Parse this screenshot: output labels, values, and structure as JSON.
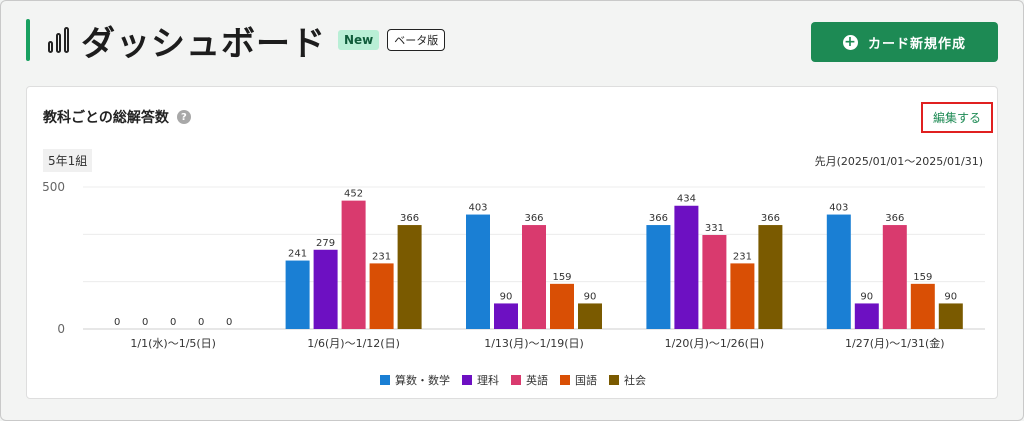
{
  "header": {
    "title": "ダッシュボード",
    "badge_new": "New",
    "badge_beta": "ベータ版",
    "create_button": "カード新規作成"
  },
  "card": {
    "title": "教科ごとの総解答数",
    "help": "?",
    "edit_link": "編集する",
    "class_tag": "5年1組",
    "period": "先月(2025/01/01〜2025/01/31)"
  },
  "colors": {
    "accent": "#1d8a54",
    "math": "#1a7fd4",
    "science": "#6d10c2",
    "english": "#d93a6e",
    "japanese": "#d94f05",
    "social": "#7a5a00"
  },
  "chart_data": {
    "type": "bar",
    "ylim": [
      0,
      500
    ],
    "yticks": [
      0,
      500
    ],
    "categories": [
      "1/1(水)〜1/5(日)",
      "1/6(月)〜1/12(日)",
      "1/13(月)〜1/19(日)",
      "1/20(月)〜1/26(日)",
      "1/27(月)〜1/31(金)"
    ],
    "series": [
      {
        "name": "算数・数学",
        "color": "#1a7fd4",
        "values": [
          0,
          241,
          403,
          366,
          403
        ]
      },
      {
        "name": "理科",
        "color": "#6d10c2",
        "values": [
          0,
          279,
          90,
          434,
          90
        ]
      },
      {
        "name": "英語",
        "color": "#d93a6e",
        "values": [
          0,
          452,
          366,
          331,
          366
        ]
      },
      {
        "name": "国語",
        "color": "#d94f05",
        "values": [
          0,
          231,
          159,
          231,
          159
        ]
      },
      {
        "name": "社会",
        "color": "#7a5a00",
        "values": [
          0,
          366,
          90,
          366,
          90
        ]
      }
    ],
    "legend_position": "bottom",
    "grid": true
  }
}
